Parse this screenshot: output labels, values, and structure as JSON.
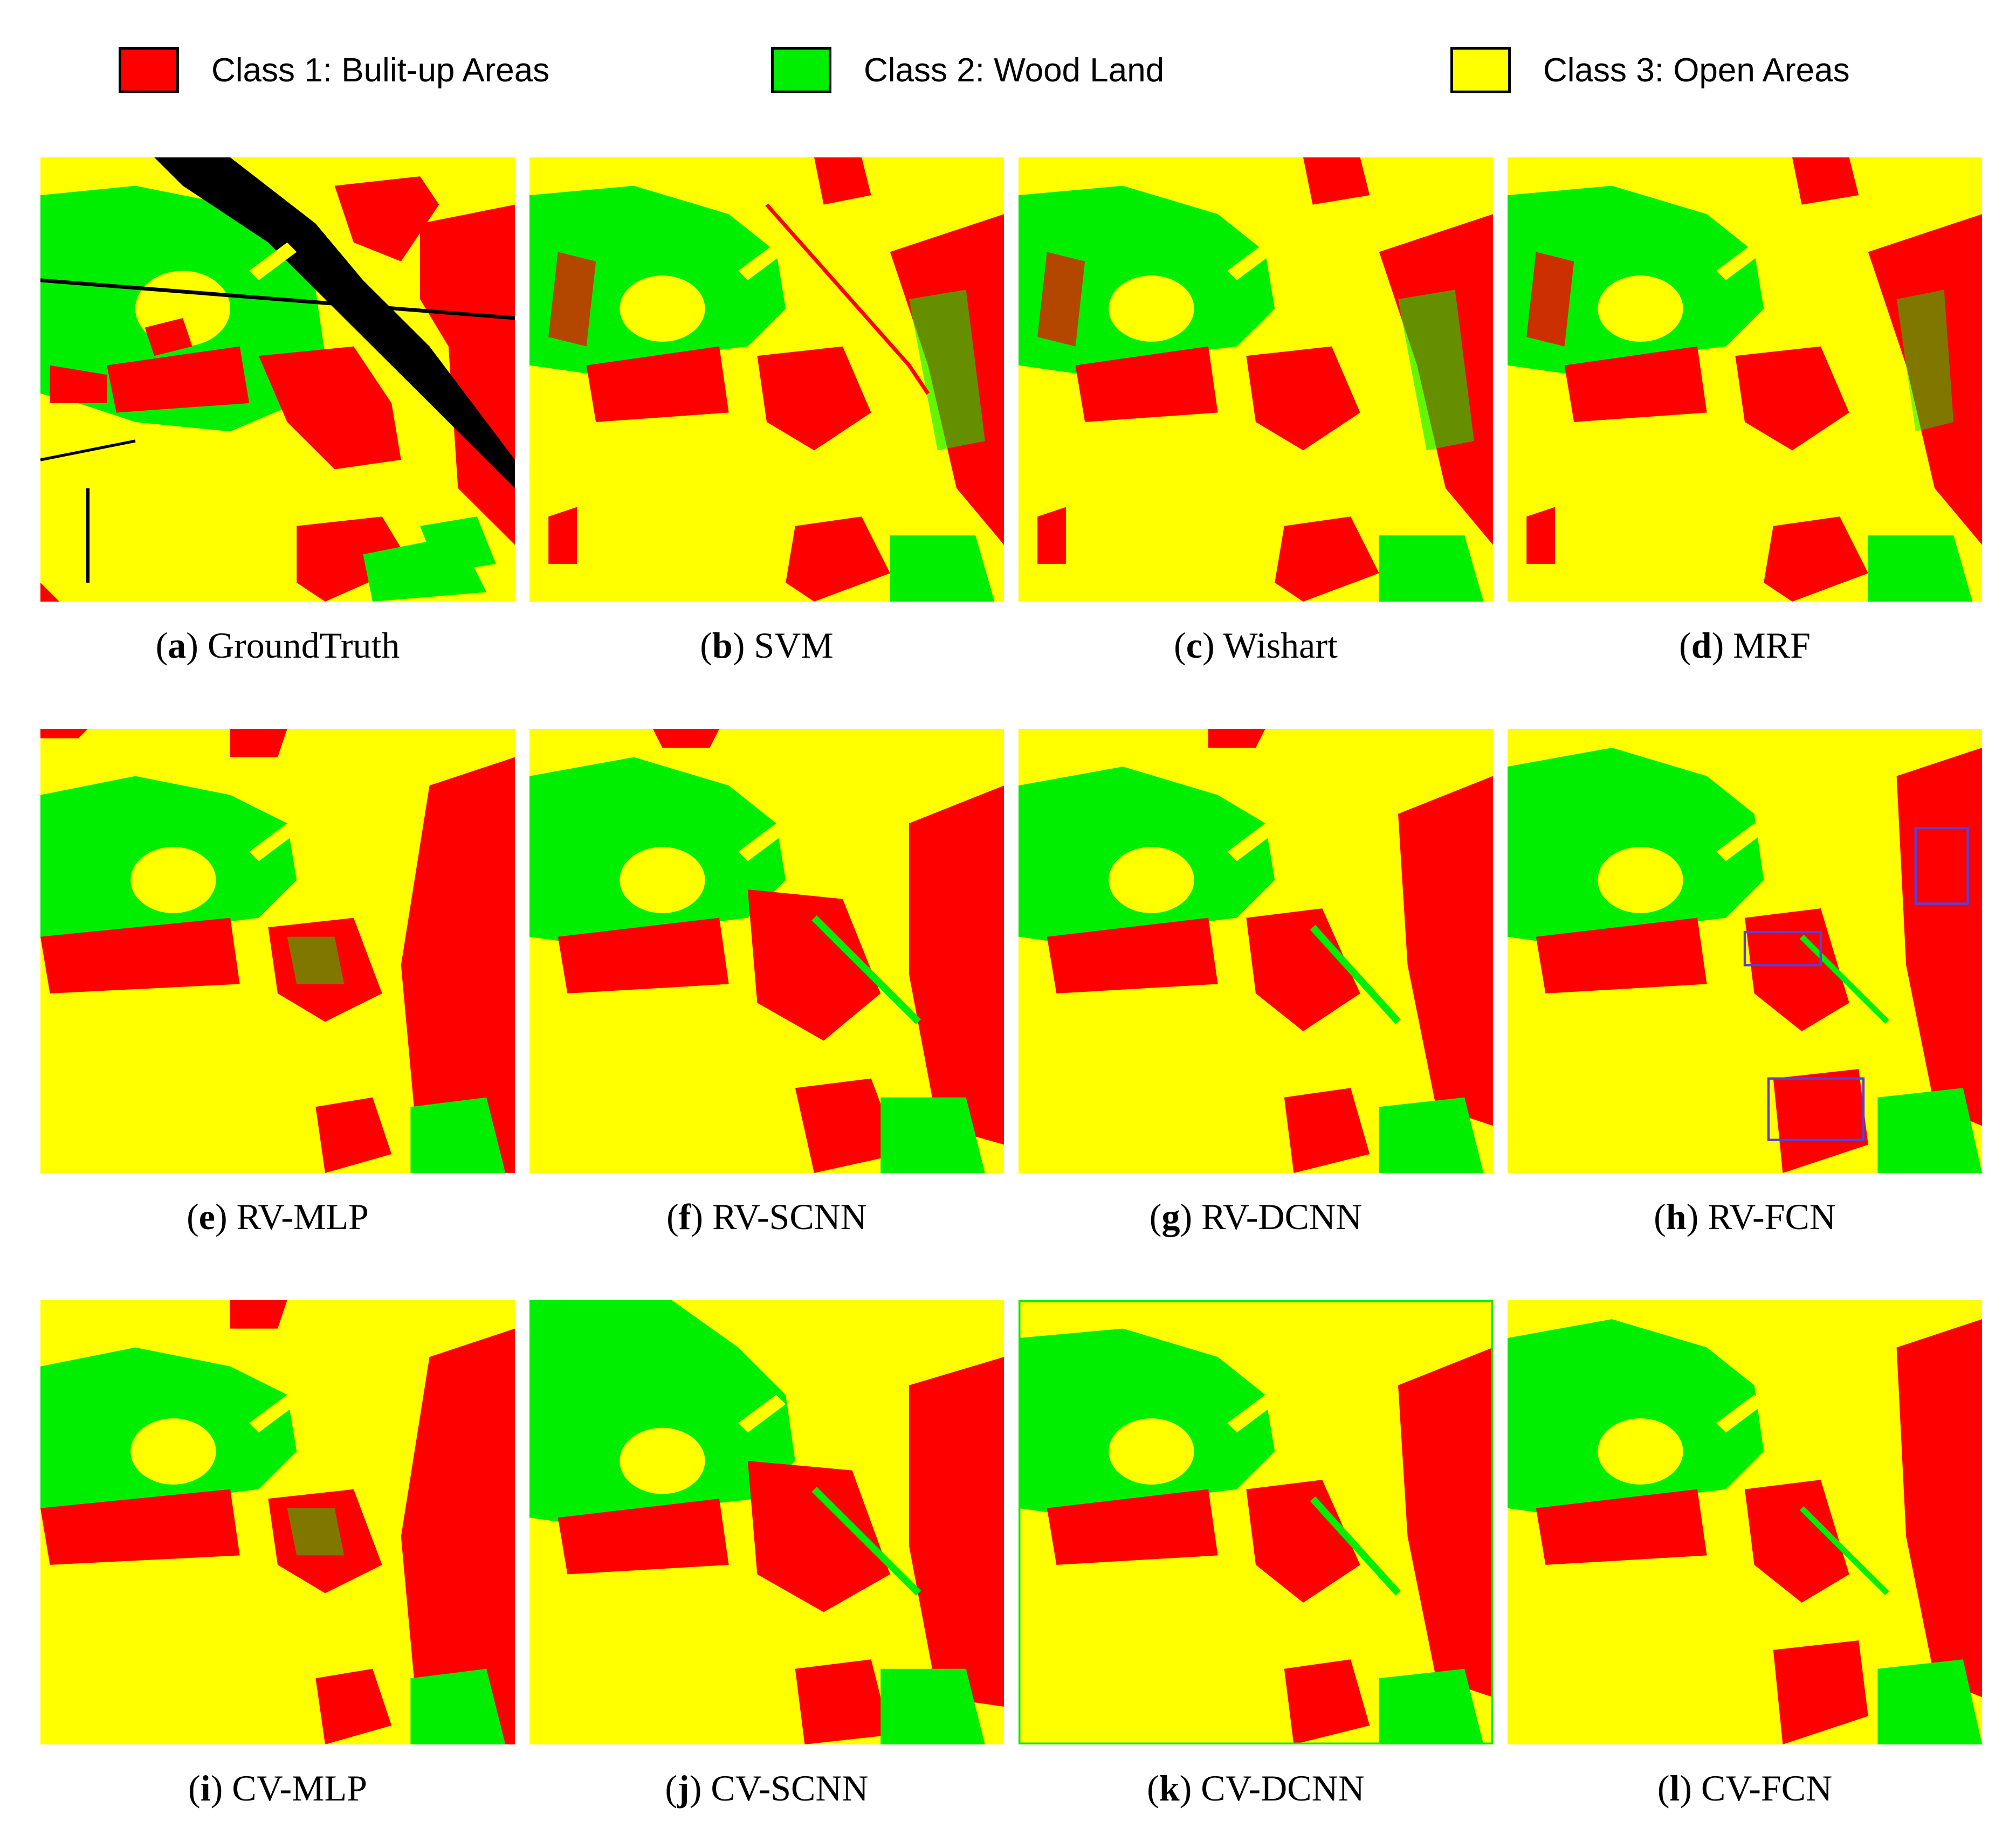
{
  "colors": {
    "class1": "#ff0000",
    "class2": "#00ee00",
    "class3": "#ffff00",
    "road": "#000000",
    "highlight_box": "#5b3fd6"
  },
  "legend": [
    {
      "label": "Class 1: Bulit-up Areas",
      "color": "#ff0000"
    },
    {
      "label": "Class 2: Wood Land",
      "color": "#00ee00"
    },
    {
      "label": "Class 3: Open Areas",
      "color": "#ffff00"
    }
  ],
  "panels": [
    {
      "letter": "a",
      "method": "GroundTruth"
    },
    {
      "letter": "b",
      "method": "SVM"
    },
    {
      "letter": "c",
      "method": "Wishart"
    },
    {
      "letter": "d",
      "method": "MRF"
    },
    {
      "letter": "e",
      "method": "RV-MLP"
    },
    {
      "letter": "f",
      "method": "RV-SCNN"
    },
    {
      "letter": "g",
      "method": "RV-DCNN"
    },
    {
      "letter": "h",
      "method": "RV-FCN"
    },
    {
      "letter": "i",
      "method": "CV-MLP"
    },
    {
      "letter": "j",
      "method": "CV-SCNN"
    },
    {
      "letter": "k",
      "method": "CV-DCNN"
    },
    {
      "letter": "l",
      "method": "CV-FCN"
    }
  ]
}
